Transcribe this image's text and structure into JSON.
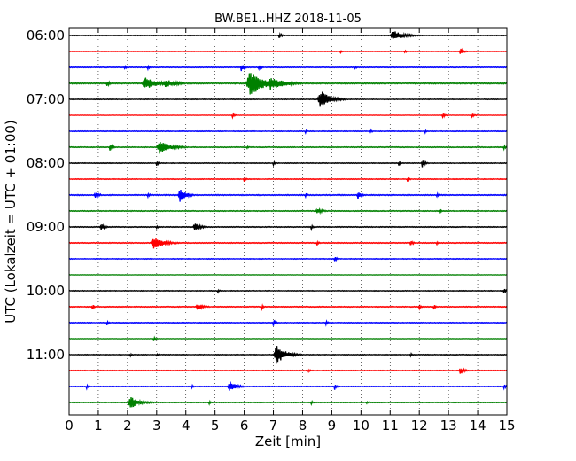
{
  "chart_data": {
    "type": "line",
    "title": "BW.BE1..HHZ 2018-11-05",
    "xlabel": "Zeit  [min]",
    "ylabel": "UTC (Lokalzeit = UTC + 01:00)",
    "xlim": [
      0,
      15
    ],
    "x_ticks": [
      "0",
      "1",
      "2",
      "3",
      "4",
      "5",
      "6",
      "7",
      "8",
      "9",
      "10",
      "11",
      "12",
      "13",
      "14",
      "15"
    ],
    "y_ticks": [
      "06:00",
      "07:00",
      "08:00",
      "09:00",
      "10:00",
      "11:00"
    ],
    "grid": true,
    "series_colors": [
      "#000000",
      "#ff0000",
      "#0000ff",
      "#008000"
    ],
    "traces": [
      {
        "label": "06:00",
        "color": "#000000",
        "noise": 0.3,
        "events": [
          {
            "t": 7.2,
            "amp": 3,
            "dur": 0.08
          },
          {
            "t": 11.1,
            "amp": 6,
            "dur": 0.35
          }
        ]
      },
      {
        "label": "06:15",
        "color": "#ff0000",
        "noise": 0.25,
        "events": [
          {
            "t": 9.3,
            "amp": 2,
            "dur": 0.05
          },
          {
            "t": 11.5,
            "amp": 2,
            "dur": 0.05
          },
          {
            "t": 13.4,
            "amp": 4,
            "dur": 0.1
          }
        ]
      },
      {
        "label": "06:30",
        "color": "#0000ff",
        "noise": 0.45,
        "events": [
          {
            "t": 1.9,
            "amp": 2,
            "dur": 0.08
          },
          {
            "t": 2.7,
            "amp": 2,
            "dur": 0.08
          },
          {
            "t": 5.9,
            "amp": 4,
            "dur": 0.1
          },
          {
            "t": 6.5,
            "amp": 3,
            "dur": 0.08
          },
          {
            "t": 9.8,
            "amp": 2,
            "dur": 0.05
          }
        ]
      },
      {
        "label": "06:45",
        "color": "#008000",
        "noise": 0.6,
        "events": [
          {
            "t": 1.3,
            "amp": 3,
            "dur": 0.1
          },
          {
            "t": 2.6,
            "amp": 7,
            "dur": 0.4
          },
          {
            "t": 3.3,
            "amp": 5,
            "dur": 0.3
          },
          {
            "t": 3.6,
            "amp": 3,
            "dur": 0.25
          },
          {
            "t": 6.2,
            "amp": 14,
            "dur": 0.5
          },
          {
            "t": 6.9,
            "amp": 8,
            "dur": 0.45
          }
        ]
      },
      {
        "label": "07:00",
        "color": "#000000",
        "noise": 0.3,
        "events": [
          {
            "t": 8.6,
            "amp": 11,
            "dur": 0.3
          }
        ]
      },
      {
        "label": "07:15",
        "color": "#ff0000",
        "noise": 0.25,
        "events": [
          {
            "t": 5.6,
            "amp": 3,
            "dur": 0.06
          },
          {
            "t": 12.8,
            "amp": 3,
            "dur": 0.08
          },
          {
            "t": 13.8,
            "amp": 2,
            "dur": 0.1
          }
        ]
      },
      {
        "label": "07:30",
        "color": "#0000ff",
        "noise": 0.35,
        "events": [
          {
            "t": 8.1,
            "amp": 2,
            "dur": 0.05
          },
          {
            "t": 10.3,
            "amp": 3,
            "dur": 0.06
          },
          {
            "t": 12.2,
            "amp": 2,
            "dur": 0.05
          }
        ]
      },
      {
        "label": "07:45",
        "color": "#008000",
        "noise": 0.4,
        "events": [
          {
            "t": 1.4,
            "amp": 4,
            "dur": 0.1
          },
          {
            "t": 3.1,
            "amp": 8,
            "dur": 0.35
          },
          {
            "t": 6.1,
            "amp": 2,
            "dur": 0.06
          },
          {
            "t": 14.9,
            "amp": 3,
            "dur": 0.06
          }
        ]
      },
      {
        "label": "08:00",
        "color": "#000000",
        "noise": 0.35,
        "events": [
          {
            "t": 3.0,
            "amp": 3,
            "dur": 0.06
          },
          {
            "t": 7.0,
            "amp": 3,
            "dur": 0.06
          },
          {
            "t": 11.3,
            "amp": 3,
            "dur": 0.06
          },
          {
            "t": 12.1,
            "amp": 5,
            "dur": 0.1
          }
        ]
      },
      {
        "label": "08:15",
        "color": "#ff0000",
        "noise": 0.35,
        "events": [
          {
            "t": 6.0,
            "amp": 3,
            "dur": 0.06
          },
          {
            "t": 11.6,
            "amp": 3,
            "dur": 0.06
          }
        ]
      },
      {
        "label": "08:30",
        "color": "#0000ff",
        "noise": 0.5,
        "events": [
          {
            "t": 0.9,
            "amp": 4,
            "dur": 0.12
          },
          {
            "t": 2.7,
            "amp": 3,
            "dur": 0.06
          },
          {
            "t": 3.8,
            "amp": 8,
            "dur": 0.2
          },
          {
            "t": 8.1,
            "amp": 3,
            "dur": 0.06
          },
          {
            "t": 9.9,
            "amp": 5,
            "dur": 0.1
          },
          {
            "t": 12.6,
            "amp": 3,
            "dur": 0.06
          }
        ]
      },
      {
        "label": "08:45",
        "color": "#008000",
        "noise": 0.4,
        "events": [
          {
            "t": 8.5,
            "amp": 3,
            "dur": 0.2
          },
          {
            "t": 12.7,
            "amp": 3,
            "dur": 0.06
          }
        ]
      },
      {
        "label": "09:00",
        "color": "#000000",
        "noise": 0.4,
        "events": [
          {
            "t": 1.1,
            "amp": 4,
            "dur": 0.12
          },
          {
            "t": 3.0,
            "amp": 2,
            "dur": 0.06
          },
          {
            "t": 4.3,
            "amp": 5,
            "dur": 0.2
          },
          {
            "t": 8.3,
            "amp": 3,
            "dur": 0.06
          }
        ]
      },
      {
        "label": "09:15",
        "color": "#ff0000",
        "noise": 0.45,
        "events": [
          {
            "t": 2.9,
            "amp": 7,
            "dur": 0.35
          },
          {
            "t": 8.5,
            "amp": 3,
            "dur": 0.06
          },
          {
            "t": 11.7,
            "amp": 3,
            "dur": 0.1
          },
          {
            "t": 12.6,
            "amp": 2,
            "dur": 0.06
          }
        ]
      },
      {
        "label": "09:30",
        "color": "#0000ff",
        "noise": 0.3,
        "events": [
          {
            "t": 9.1,
            "amp": 4,
            "dur": 0.06
          }
        ]
      },
      {
        "label": "09:45",
        "color": "#008000",
        "noise": 0.25,
        "events": []
      },
      {
        "label": "10:00",
        "color": "#000000",
        "noise": 0.3,
        "events": [
          {
            "t": 5.1,
            "amp": 2,
            "dur": 0.06
          },
          {
            "t": 14.9,
            "amp": 3,
            "dur": 0.06
          }
        ]
      },
      {
        "label": "10:15",
        "color": "#ff0000",
        "noise": 0.4,
        "events": [
          {
            "t": 0.8,
            "amp": 3,
            "dur": 0.06
          },
          {
            "t": 4.4,
            "amp": 4,
            "dur": 0.2
          },
          {
            "t": 6.6,
            "amp": 3,
            "dur": 0.06
          },
          {
            "t": 12.0,
            "amp": 3,
            "dur": 0.06
          },
          {
            "t": 12.5,
            "amp": 3,
            "dur": 0.06
          }
        ]
      },
      {
        "label": "10:30",
        "color": "#0000ff",
        "noise": 0.35,
        "events": [
          {
            "t": 1.3,
            "amp": 3,
            "dur": 0.06
          },
          {
            "t": 7.0,
            "amp": 4,
            "dur": 0.08
          },
          {
            "t": 8.8,
            "amp": 3,
            "dur": 0.06
          }
        ]
      },
      {
        "label": "10:45",
        "color": "#008000",
        "noise": 0.25,
        "events": [
          {
            "t": 2.9,
            "amp": 3,
            "dur": 0.06
          }
        ]
      },
      {
        "label": "11:00",
        "color": "#000000",
        "noise": 0.3,
        "events": [
          {
            "t": 2.1,
            "amp": 2,
            "dur": 0.06
          },
          {
            "t": 3.0,
            "amp": 2,
            "dur": 0.06
          },
          {
            "t": 7.1,
            "amp": 11,
            "dur": 0.3
          },
          {
            "t": 11.7,
            "amp": 2,
            "dur": 0.06
          }
        ]
      },
      {
        "label": "11:15",
        "color": "#ff0000",
        "noise": 0.35,
        "events": [
          {
            "t": 8.2,
            "amp": 2,
            "dur": 0.06
          },
          {
            "t": 13.4,
            "amp": 5,
            "dur": 0.12
          }
        ]
      },
      {
        "label": "11:30",
        "color": "#0000ff",
        "noise": 0.35,
        "events": [
          {
            "t": 0.6,
            "amp": 3,
            "dur": 0.06
          },
          {
            "t": 4.2,
            "amp": 3,
            "dur": 0.06
          },
          {
            "t": 5.5,
            "amp": 7,
            "dur": 0.2
          },
          {
            "t": 9.1,
            "amp": 4,
            "dur": 0.06
          },
          {
            "t": 14.9,
            "amp": 3,
            "dur": 0.06
          }
        ]
      },
      {
        "label": "11:45",
        "color": "#008000",
        "noise": 0.35,
        "events": [
          {
            "t": 2.1,
            "amp": 7,
            "dur": 0.3
          },
          {
            "t": 4.8,
            "amp": 2,
            "dur": 0.06
          },
          {
            "t": 8.3,
            "amp": 2,
            "dur": 0.06
          },
          {
            "t": 10.2,
            "amp": 2,
            "dur": 0.06
          }
        ]
      }
    ]
  }
}
